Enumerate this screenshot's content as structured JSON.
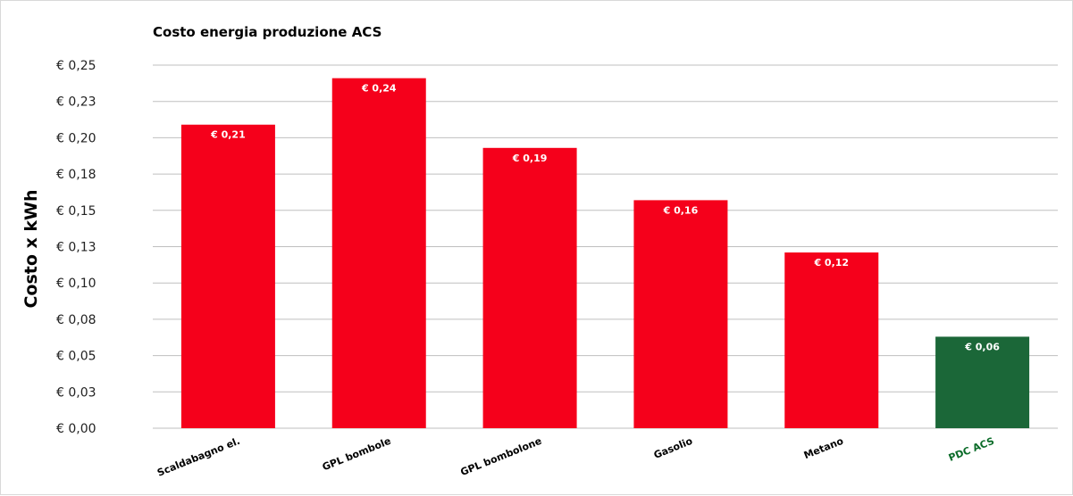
{
  "chart_data": {
    "type": "bar",
    "title": "Costo energia produzione ACS",
    "ylabel": "Costo x kWh",
    "xlabel": "",
    "ylim": [
      0,
      0.25
    ],
    "y_ticks": [
      0,
      0.025,
      0.05,
      0.075,
      0.1,
      0.125,
      0.15,
      0.175,
      0.2,
      0.225,
      0.25
    ],
    "y_tick_labels": [
      "€ 0,00",
      "€ 0,03",
      "€ 0,05",
      "€ 0,08",
      "€ 0,10",
      "€ 0,13",
      "€ 0,15",
      "€ 0,18",
      "€ 0,20",
      "€ 0,23",
      "€ 0,25"
    ],
    "grid": true,
    "legend": "none",
    "categories": [
      "Scaldabagno el.",
      "GPL bombole",
      "GPL bombolone",
      "Gasolio",
      "Metano",
      "PDC ACS"
    ],
    "values": [
      0.209,
      0.241,
      0.193,
      0.157,
      0.121,
      0.063
    ],
    "data_labels": [
      "€ 0,21",
      "€ 0,24",
      "€ 0,19",
      "€ 0,16",
      "€ 0,12",
      "€ 0,06"
    ],
    "bar_colors": [
      "#f5001b",
      "#f5001b",
      "#f5001b",
      "#f5001b",
      "#f5001b",
      "#1b6738"
    ],
    "category_label_colors": [
      "#000000",
      "#000000",
      "#000000",
      "#000000",
      "#000000",
      "#0a6b28"
    ]
  }
}
